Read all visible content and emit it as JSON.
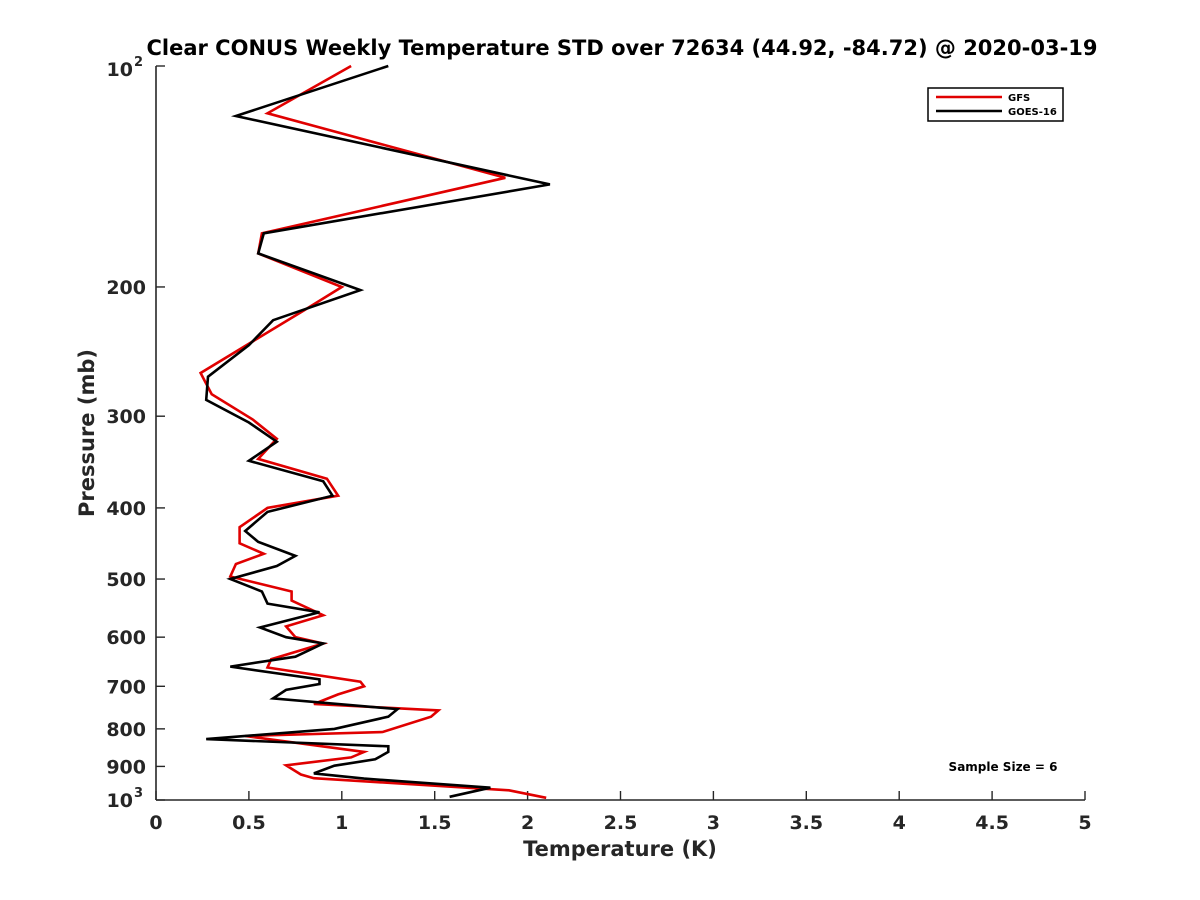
{
  "chart_data": {
    "type": "line",
    "title": "Clear CONUS Weekly Temperature STD over 72634 (44.92, -84.72) @ 2020-03-19",
    "xlabel": "Temperature (K)",
    "ylabel": "Pressure (mb)",
    "xlim": [
      0,
      5
    ],
    "ylim": [
      100,
      1000
    ],
    "y_scale": "log",
    "y_reversed": true,
    "grid": false,
    "legend_position": "top-right",
    "x_ticks": [
      {
        "value": 0,
        "label": "0"
      },
      {
        "value": 0.5,
        "label": "0.5"
      },
      {
        "value": 1,
        "label": "1"
      },
      {
        "value": 1.5,
        "label": "1.5"
      },
      {
        "value": 2,
        "label": "2"
      },
      {
        "value": 2.5,
        "label": "2.5"
      },
      {
        "value": 3,
        "label": "3"
      },
      {
        "value": 3.5,
        "label": "3.5"
      },
      {
        "value": 4,
        "label": "4"
      },
      {
        "value": 4.5,
        "label": "4.5"
      },
      {
        "value": 5,
        "label": "5"
      }
    ],
    "y_ticks": [
      {
        "value": 100,
        "base": "10",
        "exp": "2"
      },
      {
        "value": 200,
        "label": "200"
      },
      {
        "value": 300,
        "label": "300"
      },
      {
        "value": 400,
        "label": "400"
      },
      {
        "value": 500,
        "label": "500"
      },
      {
        "value": 600,
        "label": "600"
      },
      {
        "value": 700,
        "label": "700"
      },
      {
        "value": 800,
        "label": "800"
      },
      {
        "value": 900,
        "label": "900"
      },
      {
        "value": 1000,
        "base": "10",
        "exp": "3"
      }
    ],
    "annotation": "Sample Size = 6",
    "series": [
      {
        "name": "GFS",
        "color": "#e00000",
        "points": [
          [
            1.05,
            100
          ],
          [
            0.6,
            116
          ],
          [
            1.88,
            142
          ],
          [
            0.57,
            169
          ],
          [
            0.55,
            180
          ],
          [
            1.0,
            200
          ],
          [
            0.8,
            215
          ],
          [
            0.24,
            262
          ],
          [
            0.3,
            280
          ],
          [
            0.52,
            303
          ],
          [
            0.65,
            322
          ],
          [
            0.55,
            343
          ],
          [
            0.92,
            365
          ],
          [
            0.98,
            385
          ],
          [
            0.6,
            400
          ],
          [
            0.45,
            425
          ],
          [
            0.45,
            447
          ],
          [
            0.58,
            462
          ],
          [
            0.43,
            477
          ],
          [
            0.4,
            496
          ],
          [
            0.73,
            520
          ],
          [
            0.73,
            535
          ],
          [
            0.9,
            560
          ],
          [
            0.7,
            580
          ],
          [
            0.75,
            600
          ],
          [
            0.9,
            612
          ],
          [
            0.62,
            643
          ],
          [
            0.6,
            660
          ],
          [
            1.1,
            690
          ],
          [
            1.12,
            700
          ],
          [
            0.98,
            718
          ],
          [
            0.85,
            740
          ],
          [
            1.52,
            755
          ],
          [
            1.48,
            770
          ],
          [
            1.22,
            808
          ],
          [
            0.48,
            818
          ],
          [
            1.12,
            860
          ],
          [
            1.05,
            875
          ],
          [
            0.7,
            897
          ],
          [
            0.78,
            923
          ],
          [
            0.85,
            934
          ],
          [
            1.9,
            970
          ],
          [
            2.1,
            993
          ]
        ]
      },
      {
        "name": "GOES-16",
        "color": "#000000",
        "points": [
          [
            1.25,
            100
          ],
          [
            0.43,
            117
          ],
          [
            2.12,
            145
          ],
          [
            0.58,
            169
          ],
          [
            0.55,
            180
          ],
          [
            1.1,
            202
          ],
          [
            0.63,
            222
          ],
          [
            0.5,
            240
          ],
          [
            0.28,
            265
          ],
          [
            0.27,
            285
          ],
          [
            0.5,
            306
          ],
          [
            0.65,
            325
          ],
          [
            0.5,
            345
          ],
          [
            0.9,
            368
          ],
          [
            0.95,
            385
          ],
          [
            0.6,
            405
          ],
          [
            0.48,
            430
          ],
          [
            0.55,
            445
          ],
          [
            0.75,
            465
          ],
          [
            0.65,
            480
          ],
          [
            0.4,
            500
          ],
          [
            0.57,
            520
          ],
          [
            0.6,
            540
          ],
          [
            0.88,
            555
          ],
          [
            0.56,
            582
          ],
          [
            0.7,
            600
          ],
          [
            0.9,
            612
          ],
          [
            0.75,
            638
          ],
          [
            0.4,
            658
          ],
          [
            0.88,
            685
          ],
          [
            0.88,
            695
          ],
          [
            0.7,
            708
          ],
          [
            0.63,
            727
          ],
          [
            1.3,
            752
          ],
          [
            1.25,
            770
          ],
          [
            0.96,
            800
          ],
          [
            0.27,
            826
          ],
          [
            1.25,
            845
          ],
          [
            1.25,
            860
          ],
          [
            1.18,
            880
          ],
          [
            0.96,
            898
          ],
          [
            0.85,
            920
          ],
          [
            1.12,
            935
          ],
          [
            1.8,
            962
          ],
          [
            1.58,
            990
          ]
        ]
      }
    ]
  }
}
